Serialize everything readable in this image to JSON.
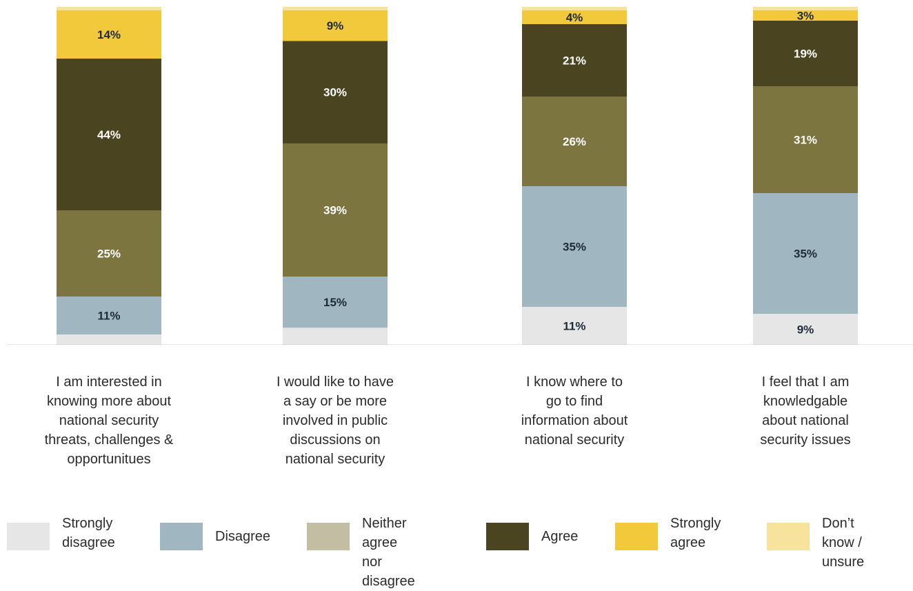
{
  "chart_data": {
    "type": "bar",
    "stacked": true,
    "normalized_percent": true,
    "categories": [
      "I am interested in\nknowing more about\nnational security\nthreats, challenges &\nopportunitues",
      "I would like to have\na say or be more\ninvolved in public\ndiscussions on\nnational security",
      "I know where to\ngo to find\ninformation about\nnational security",
      "I feel that I am\nknowledgable\nabout national\nsecurity issues"
    ],
    "series": [
      {
        "name": "Strongly\ndisagree",
        "color": "#e6e6e6",
        "values": [
          3,
          5,
          11,
          9
        ],
        "labels": [
          "",
          "",
          "11%",
          "9%"
        ]
      },
      {
        "name": "Disagree",
        "color": "#a0b6c0",
        "values": [
          11,
          15,
          35,
          35
        ],
        "labels": [
          "11%",
          "15%",
          "35%",
          "35%"
        ]
      },
      {
        "name": "Neither agree\nnor disagree",
        "color": "#7c7540",
        "legend_color": "#c2bda3",
        "values": [
          25,
          39,
          26,
          31
        ],
        "labels": [
          "25%",
          "39%",
          "26%",
          "31%"
        ]
      },
      {
        "name": "Agree",
        "color": "#4b4421",
        "values": [
          44,
          30,
          21,
          19
        ],
        "labels": [
          "44%",
          "30%",
          "21%",
          "19%"
        ]
      },
      {
        "name": "Strongly\nagree",
        "color": "#f3c93c",
        "values": [
          14,
          9,
          4,
          3
        ],
        "labels": [
          "14%",
          "9%",
          "4%",
          "3%"
        ]
      },
      {
        "name": "Don’t know /\nunsure",
        "color": "#f7e39c",
        "values": [
          1,
          1,
          1,
          1
        ],
        "labels": [
          "",
          "",
          "",
          ""
        ]
      }
    ],
    "ylim": [
      0,
      100
    ],
    "legend_position": "bottom",
    "grid": false
  }
}
